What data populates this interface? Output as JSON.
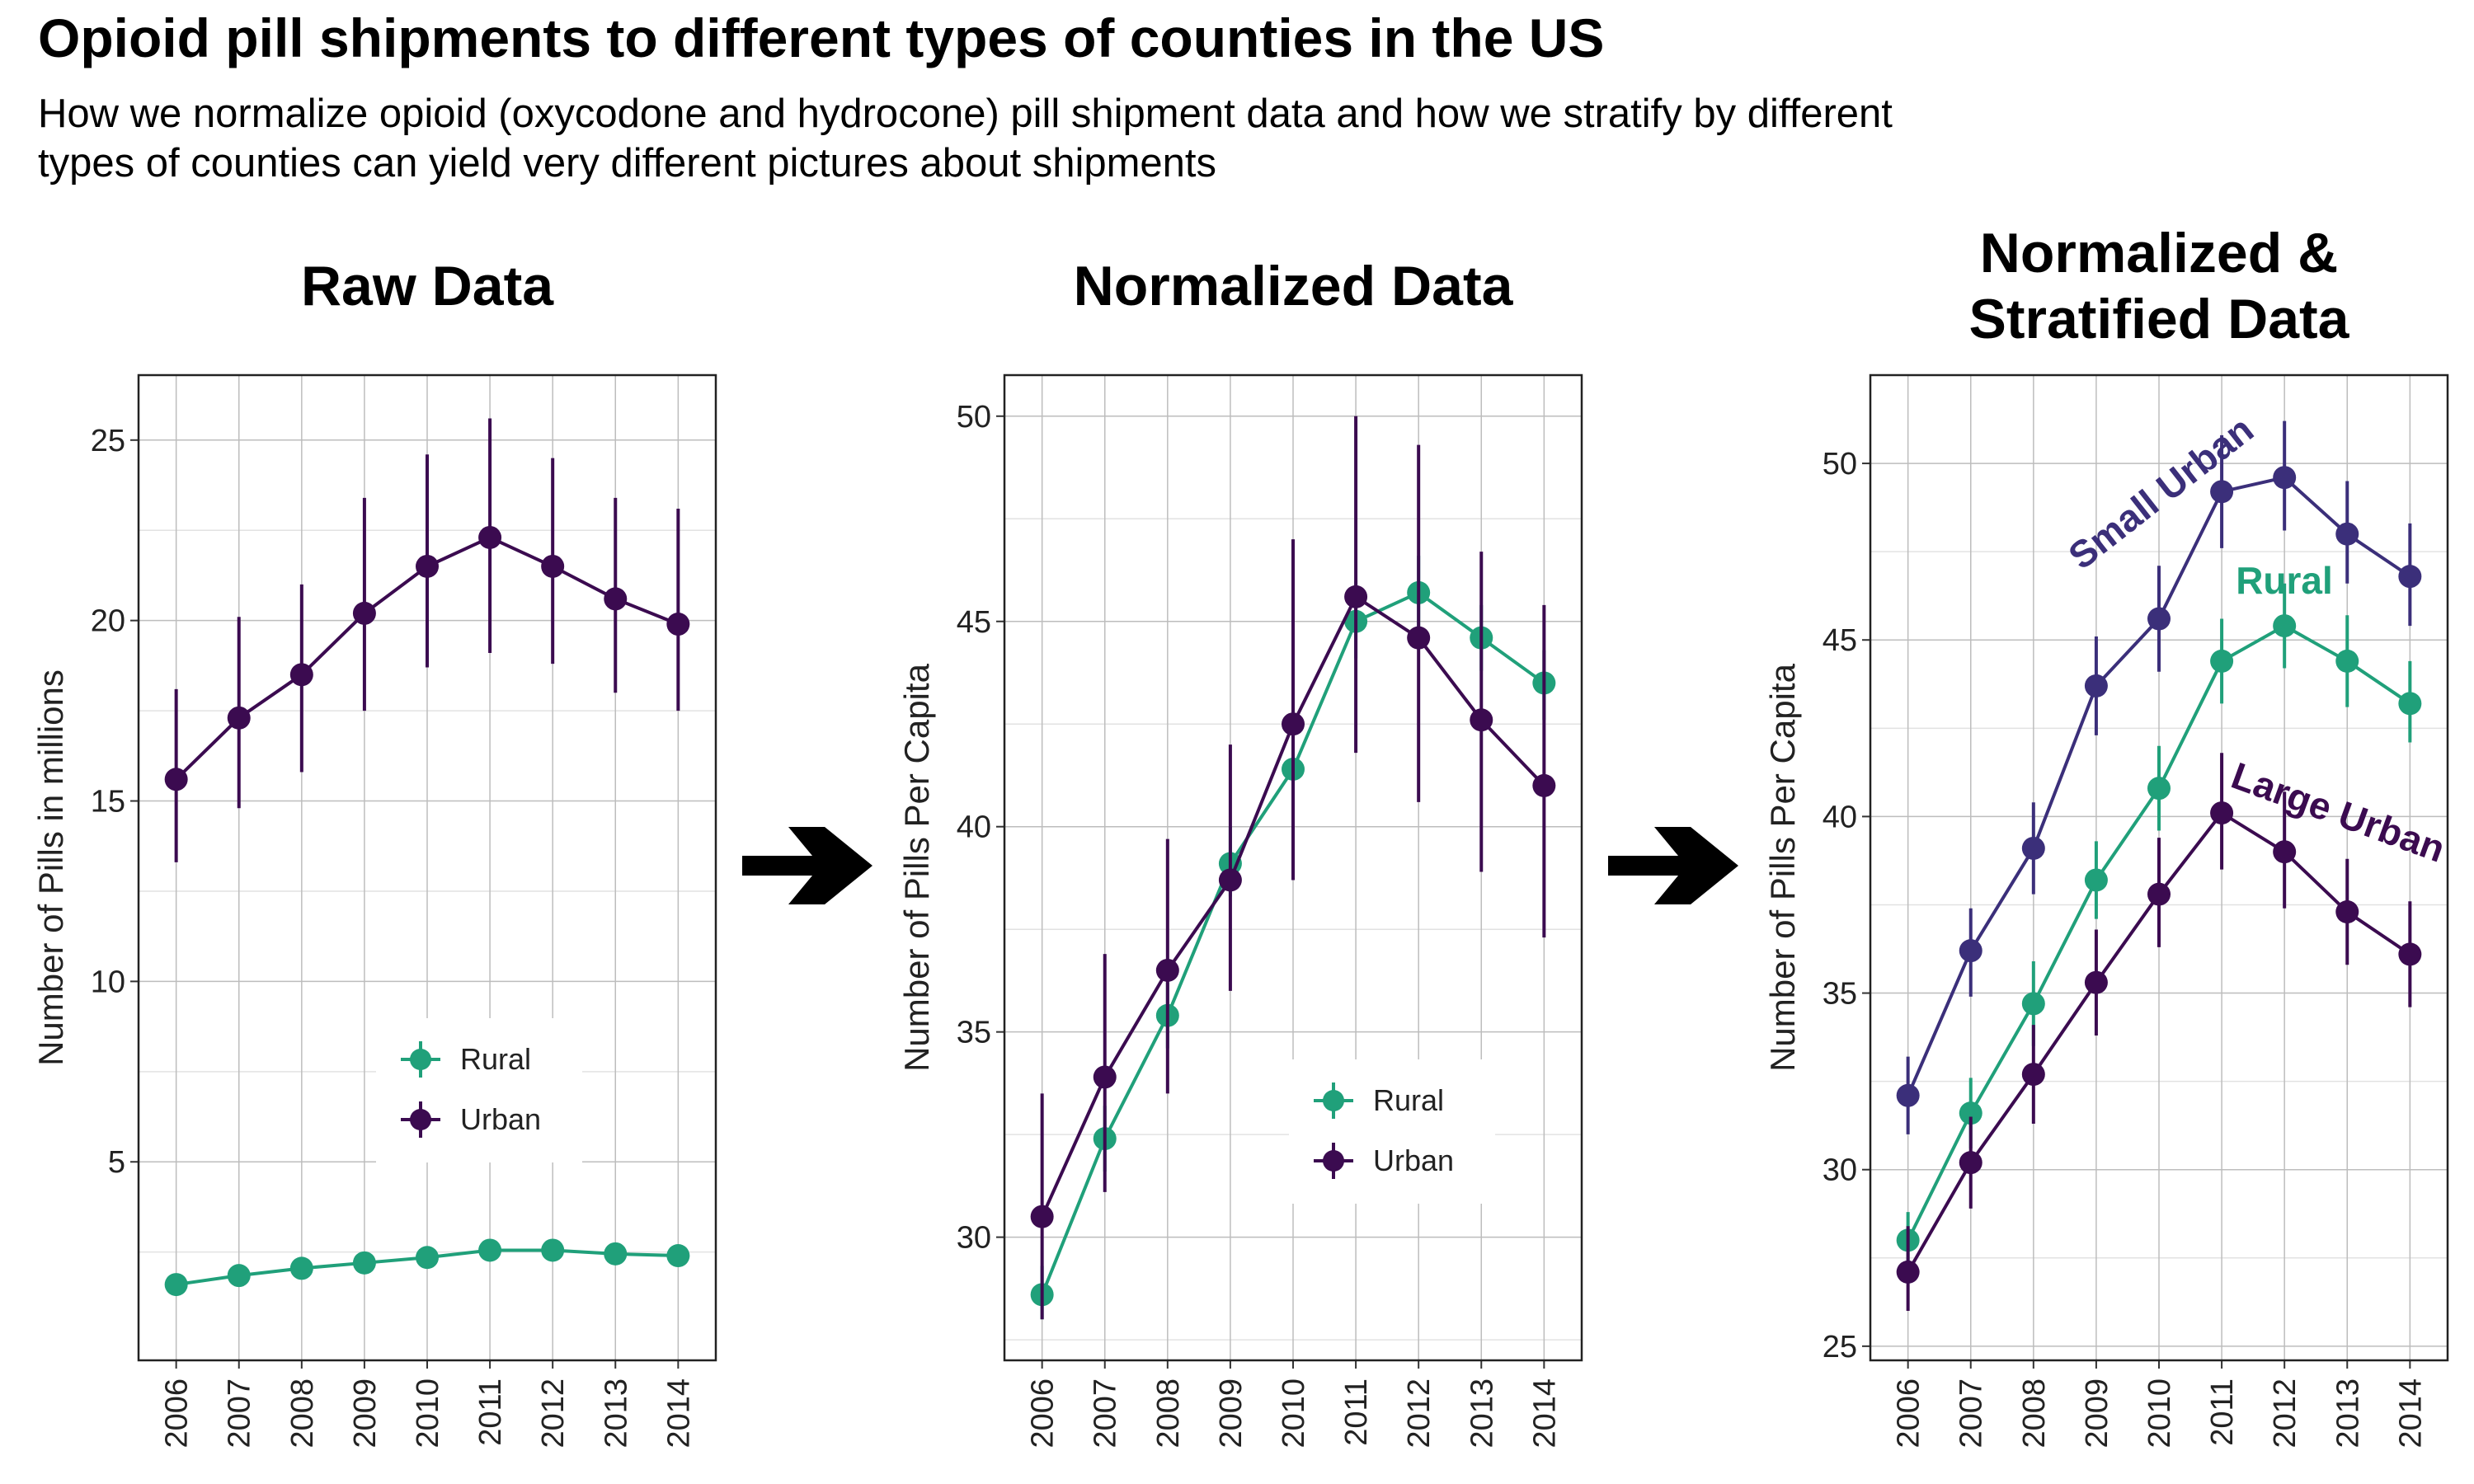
{
  "header": {
    "title": "Opioid pill shipments to different types of counties in the US",
    "subtitle_lines": [
      "How we normalize opioid (oxycodone and hydrocone) pill shipment data and how we stratify by different",
      "types of counties can yield very different pictures about shipments"
    ]
  },
  "colors": {
    "rural": "#20a07a",
    "urban": "#3b0b50",
    "small_urban": "#3b2f7a",
    "large_urban": "#3b0b50",
    "arrow": "#000000"
  },
  "chart_data": [
    {
      "type": "line",
      "title": "Raw Data",
      "ylabel": "Number of Pills in millions",
      "xlabel": "",
      "x": [
        2006,
        2007,
        2008,
        2009,
        2010,
        2011,
        2012,
        2013,
        2014
      ],
      "x_tick_labels": [
        "2006",
        "2007",
        "2008",
        "2009",
        "2010",
        "2011",
        "2012",
        "2013",
        "2014"
      ],
      "ylim": [
        -0.5,
        26.8
      ],
      "y_ticks": [
        5,
        10,
        15,
        20,
        25
      ],
      "y_tick_labels": [
        "5",
        "10",
        "15",
        "20",
        "25"
      ],
      "grid": true,
      "error_bars": true,
      "legend": "bottom-center",
      "series": [
        {
          "name": "Rural",
          "color": "#20a07a",
          "values": [
            1.6,
            1.85,
            2.05,
            2.2,
            2.35,
            2.55,
            2.55,
            2.45,
            2.4
          ],
          "lower": [
            1.4,
            1.65,
            1.85,
            2.0,
            2.15,
            2.35,
            2.35,
            2.25,
            2.2
          ],
          "upper": [
            1.8,
            2.05,
            2.25,
            2.4,
            2.55,
            2.75,
            2.75,
            2.65,
            2.6
          ]
        },
        {
          "name": "Urban",
          "color": "#3b0b50",
          "values": [
            15.6,
            17.3,
            18.5,
            20.2,
            21.5,
            22.3,
            21.5,
            20.6,
            19.9
          ],
          "lower": [
            13.3,
            14.8,
            15.8,
            17.5,
            18.7,
            19.1,
            18.8,
            18.0,
            17.5
          ],
          "upper": [
            18.1,
            20.1,
            21.0,
            23.4,
            24.6,
            25.6,
            24.5,
            23.4,
            23.1
          ]
        }
      ]
    },
    {
      "type": "line",
      "title": "Normalized Data",
      "ylabel": "Number of Pills Per Capita",
      "xlabel": "",
      "x": [
        2006,
        2007,
        2008,
        2009,
        2010,
        2011,
        2012,
        2013,
        2014
      ],
      "x_tick_labels": [
        "2006",
        "2007",
        "2008",
        "2009",
        "2010",
        "2011",
        "2012",
        "2013",
        "2014"
      ],
      "ylim": [
        27,
        51
      ],
      "y_ticks": [
        30,
        35,
        40,
        45,
        50
      ],
      "y_tick_labels": [
        "30",
        "35",
        "40",
        "45",
        "50"
      ],
      "grid": true,
      "error_bars": true,
      "legend": "bottom-right",
      "series": [
        {
          "name": "Rural",
          "color": "#20a07a",
          "values": [
            28.6,
            32.4,
            35.4,
            39.1,
            41.4,
            45.0,
            45.7,
            44.6,
            43.5
          ],
          "lower": [
            28.0,
            31.6,
            34.6,
            38.3,
            40.4,
            44.1,
            44.8,
            43.8,
            42.6
          ],
          "upper": [
            29.3,
            33.2,
            36.2,
            40.0,
            42.4,
            46.0,
            46.6,
            45.4,
            44.3
          ]
        },
        {
          "name": "Urban",
          "color": "#3b0b50",
          "values": [
            30.5,
            33.9,
            36.5,
            38.7,
            42.5,
            45.6,
            44.6,
            42.6,
            41.0
          ],
          "lower": [
            28.0,
            31.1,
            33.5,
            36.0,
            38.7,
            41.8,
            40.6,
            38.9,
            37.3
          ],
          "upper": [
            33.5,
            36.9,
            39.7,
            42.0,
            47.0,
            50.0,
            49.3,
            46.7,
            45.4
          ]
        }
      ]
    },
    {
      "type": "line",
      "title": "Normalized & Stratified Data",
      "title_lines": [
        "Normalized &",
        "Stratified Data"
      ],
      "ylabel": "Number of Pills Per Capita",
      "xlabel": "",
      "x": [
        2006,
        2007,
        2008,
        2009,
        2010,
        2011,
        2012,
        2013,
        2014
      ],
      "x_tick_labels": [
        "2006",
        "2007",
        "2008",
        "2009",
        "2010",
        "2011",
        "2012",
        "2013",
        "2014"
      ],
      "ylim": [
        24.6,
        52.5
      ],
      "y_ticks": [
        25,
        30,
        35,
        40,
        45,
        50
      ],
      "y_tick_labels": [
        "25",
        "30",
        "35",
        "40",
        "45",
        "50"
      ],
      "grid": true,
      "error_bars": true,
      "legend": "none",
      "series": [
        {
          "name": "Small Urban",
          "color": "#3b2f7a",
          "values": [
            32.1,
            36.2,
            39.1,
            43.7,
            45.6,
            49.2,
            49.6,
            48.0,
            46.8
          ],
          "lower": [
            31.0,
            34.9,
            37.8,
            42.3,
            44.1,
            47.6,
            48.1,
            46.6,
            45.4
          ],
          "upper": [
            33.2,
            37.4,
            40.4,
            45.1,
            47.1,
            50.8,
            51.2,
            49.5,
            48.3
          ]
        },
        {
          "name": "Rural",
          "color": "#20a07a",
          "values": [
            28.0,
            31.6,
            34.7,
            38.2,
            40.8,
            44.4,
            45.4,
            44.4,
            43.2
          ],
          "lower": [
            27.2,
            30.6,
            33.5,
            37.1,
            39.6,
            43.2,
            44.2,
            43.1,
            42.1
          ],
          "upper": [
            28.8,
            32.6,
            35.9,
            39.3,
            42.0,
            45.6,
            46.6,
            45.7,
            44.4
          ]
        },
        {
          "name": "Large Urban",
          "color": "#3b0b50",
          "values": [
            27.1,
            30.2,
            32.7,
            35.3,
            37.8,
            40.1,
            39.0,
            37.3,
            36.1
          ],
          "lower": [
            26.0,
            28.9,
            31.3,
            33.8,
            36.3,
            38.5,
            37.4,
            35.8,
            34.6
          ],
          "upper": [
            28.4,
            31.5,
            34.1,
            36.8,
            39.4,
            41.8,
            40.7,
            38.8,
            37.6
          ]
        }
      ],
      "annotations": [
        "Small Urban",
        "Rural",
        "Large Urban"
      ]
    }
  ]
}
